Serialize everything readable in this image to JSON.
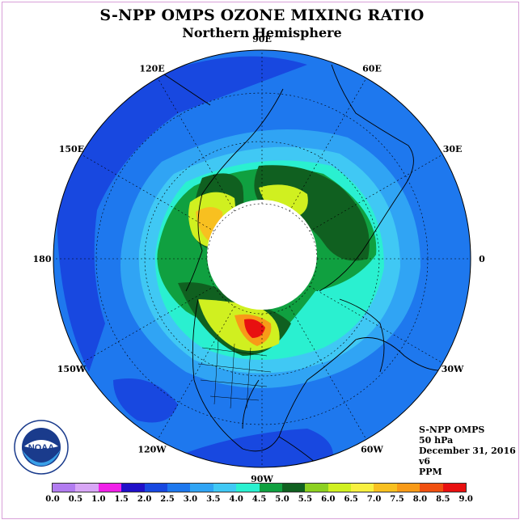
{
  "title": "S-NPP OMPS OZONE MIXING RATIO",
  "subtitle": "Northern Hemisphere",
  "longitude_labels": [
    {
      "text": "90E",
      "lon": 90
    },
    {
      "text": "60E",
      "lon": 60
    },
    {
      "text": "30E",
      "lon": 30
    },
    {
      "text": "0",
      "lon": 0
    },
    {
      "text": "30W",
      "lon": -30
    },
    {
      "text": "60W",
      "lon": -60
    },
    {
      "text": "90W",
      "lon": -90
    },
    {
      "text": "120W",
      "lon": -120
    },
    {
      "text": "150W",
      "lon": -150
    },
    {
      "text": "180",
      "lon": 180
    },
    {
      "text": "150E",
      "lon": 150
    },
    {
      "text": "120E",
      "lon": 120
    }
  ],
  "info": {
    "line1": "S-NPP OMPS",
    "line2": "50 hPa",
    "line3": "December 31, 2016",
    "line4": "v6",
    "line5": "PPM"
  },
  "colorbar": {
    "ticks": [
      "0.0",
      "0.5",
      "1.0",
      "1.5",
      "2.0",
      "2.5",
      "3.0",
      "3.5",
      "4.0",
      "4.5",
      "5.0",
      "5.5",
      "6.0",
      "6.5",
      "7.0",
      "7.5",
      "8.0",
      "8.5",
      "9.0"
    ],
    "colors": [
      "#b27cf0",
      "#d8a6f6",
      "#f020e8",
      "#2010c8",
      "#1848e0",
      "#1e78ee",
      "#30a4f4",
      "#40c8f4",
      "#2af0d0",
      "#10a040",
      "#106020",
      "#8cd020",
      "#d0f020",
      "#f8f040",
      "#f8c020",
      "#f89a18",
      "#f05010",
      "#e81010",
      "#906040"
    ]
  },
  "logo": {
    "text": "NOAA",
    "icon": "noaa-logo-icon"
  },
  "colors": {
    "ocean_outer": "#1e6ce6",
    "polar_mask": "#ffffff",
    "frame": "#d8a0d8"
  }
}
